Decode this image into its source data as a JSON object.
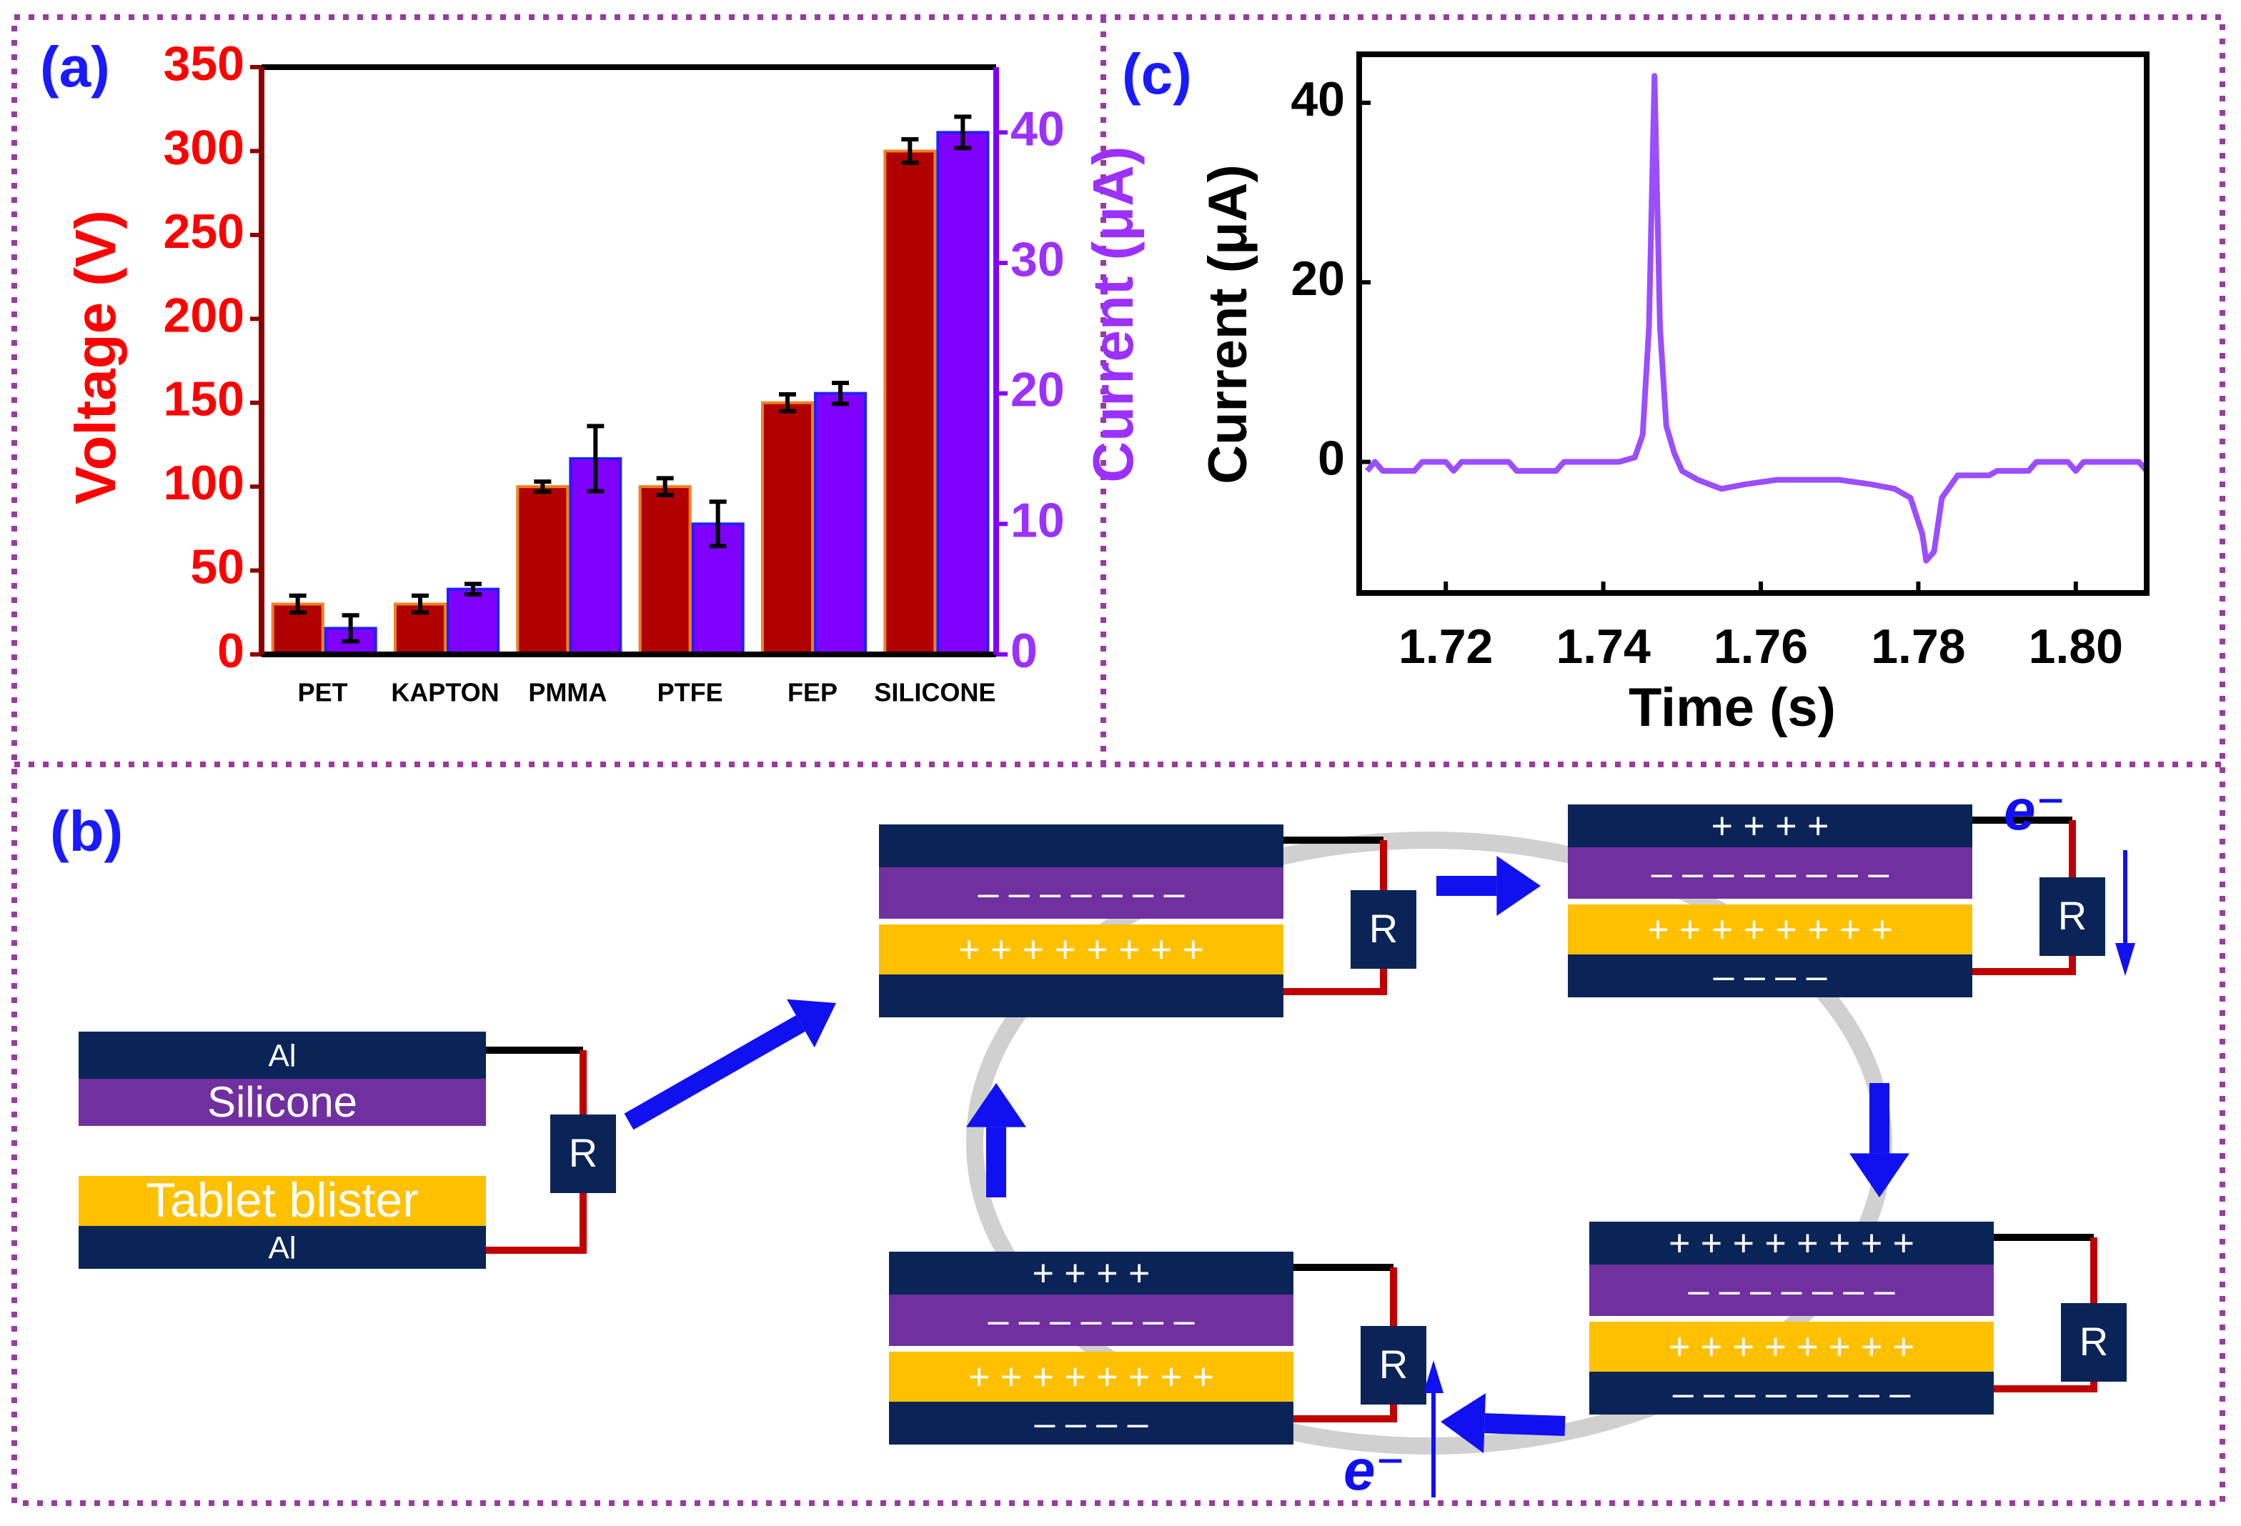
{
  "chart_data": [
    {
      "type": "bar",
      "panel_label": "(a)",
      "categories": [
        "PET",
        "KAPTON",
        "PMMA",
        "PTFE",
        "FEP",
        "SILICONE"
      ],
      "ylabel": "Voltage (V)",
      "y2label": "Current (μA)",
      "ylim": [
        0,
        350
      ],
      "yticks": [
        0,
        50,
        100,
        150,
        200,
        250,
        300,
        350
      ],
      "y2lim": [
        0,
        45
      ],
      "y2ticks": [
        0,
        10,
        20,
        30,
        40
      ],
      "series": [
        {
          "name": "Voltage",
          "color": "#b00000",
          "values": [
            30,
            30,
            100,
            100,
            150,
            300
          ],
          "errors": [
            5,
            5,
            3,
            5,
            5,
            7
          ]
        },
        {
          "name": "Current",
          "color": "#8000ff",
          "axis": "y2",
          "values": [
            2,
            5,
            15,
            10,
            20,
            40
          ],
          "errors": [
            1,
            0.4,
            2.5,
            1.7,
            0.8,
            1.2
          ]
        }
      ]
    },
    {
      "type": "line",
      "panel_label": "(c)",
      "xlabel": "Time (s)",
      "ylabel": "Current (μA)",
      "xlim": [
        1.709,
        1.809
      ],
      "xticks": [
        1.72,
        1.74,
        1.76,
        1.78,
        {
          "value": 1.8,
          "label": "1.80"
        }
      ],
      "ylim": [
        -14.6,
        45.4
      ],
      "yticks": [
        0,
        20,
        40
      ],
      "series": [
        {
          "name": "Current",
          "color": "#9b4dff",
          "x": [
            1.71,
            1.711,
            1.712,
            1.716,
            1.717,
            1.72,
            1.721,
            1.722,
            1.728,
            1.729,
            1.734,
            1.735,
            1.742,
            1.744,
            1.745,
            1.7458,
            1.7465,
            1.7472,
            1.748,
            1.749,
            1.75,
            1.752,
            1.755,
            1.758,
            1.762,
            1.766,
            1.77,
            1.774,
            1.777,
            1.779,
            1.7805,
            1.781,
            1.782,
            1.783,
            1.785,
            1.789,
            1.79,
            1.794,
            1.795,
            1.799,
            1.8,
            1.801,
            1.808,
            1.809
          ],
          "values": [
            -1,
            0,
            -1,
            -1,
            0,
            0,
            -1,
            0,
            0,
            -1,
            -1,
            0,
            0,
            0.5,
            3,
            15,
            43,
            15,
            4,
            1,
            -1,
            -2,
            -3,
            -2.5,
            -2,
            -2,
            -2,
            -2.5,
            -3,
            -4,
            -8,
            -11,
            -10,
            -4,
            -1.5,
            -1.5,
            -1,
            -1,
            0,
            0,
            -1,
            0,
            0,
            -1
          ]
        }
      ]
    }
  ],
  "diagram": {
    "panel_label": "(b)",
    "initial": {
      "top_electrode": "Al",
      "top_layer": "Silicone",
      "bottom_layer": "Tablet blister",
      "bottom_electrode": "Al",
      "resistor": "R"
    },
    "stages": [
      {
        "top_layer": "– – – – – – –",
        "bottom_layer": "+ + + + + + + +",
        "resistor": "R"
      },
      {
        "top_electrode": "+ + + +",
        "top_layer": "– – – – – – – –",
        "bottom_layer": "+ + + + + + + +",
        "bottom_electrode": "– – – –",
        "resistor": "R",
        "electron": "e⁻"
      },
      {
        "top_electrode": "+ + + + + + + +",
        "top_layer": "– – – – – – –",
        "bottom_layer": "+ + + + + + + +",
        "bottom_electrode": "– – – – – – – –",
        "resistor": "R"
      },
      {
        "top_electrode": "+ + + +",
        "top_layer": "– – – – – – –",
        "bottom_layer": "+ + + + + + + +",
        "bottom_electrode": "– – – –",
        "resistor": "R",
        "electron": "e⁻"
      }
    ]
  }
}
